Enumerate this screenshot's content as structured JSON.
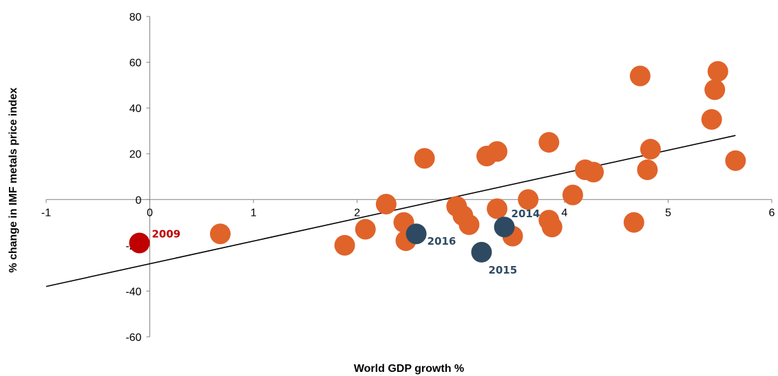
{
  "chart_data": {
    "type": "scatter",
    "title": "",
    "xlabel": "World GDP growth %",
    "ylabel": "% change in IMF metals price index",
    "xlim": [
      -1,
      6
    ],
    "ylim": [
      -60,
      80
    ],
    "xticks": [
      "-1",
      "0",
      "1",
      "2",
      "3",
      "4",
      "5",
      "6"
    ],
    "yticks": [
      "80",
      "60",
      "40",
      "20",
      "0",
      "-20",
      "-40",
      "-60"
    ],
    "grid": false,
    "legend": "none",
    "colors": {
      "default": "#e0632a",
      "highlight_2009": "#c00000",
      "recent": "#2e4a62",
      "label_2009": "#c00000",
      "label_recent": "#2e4a62",
      "trendline": "#000000"
    },
    "trendline": {
      "x": [
        -1,
        5.65
      ],
      "y": [
        -38,
        28
      ]
    },
    "points": [
      {
        "x": -0.1,
        "y": -19,
        "label": "2009",
        "group": "highlight_2009"
      },
      {
        "x": 2.57,
        "y": -15,
        "label": "2016",
        "group": "recent"
      },
      {
        "x": 3.2,
        "y": -23,
        "label": "2015",
        "group": "recent"
      },
      {
        "x": 3.42,
        "y": -12,
        "label": "2014",
        "group": "recent"
      },
      {
        "x": 0.68,
        "y": -15,
        "group": "default"
      },
      {
        "x": 1.88,
        "y": -20,
        "group": "default"
      },
      {
        "x": 2.08,
        "y": -13,
        "group": "default"
      },
      {
        "x": 2.28,
        "y": -2,
        "group": "default"
      },
      {
        "x": 2.45,
        "y": -10,
        "group": "default"
      },
      {
        "x": 2.47,
        "y": -18,
        "group": "default"
      },
      {
        "x": 2.65,
        "y": 18,
        "group": "default"
      },
      {
        "x": 2.96,
        "y": -3,
        "group": "default"
      },
      {
        "x": 3.02,
        "y": -7,
        "group": "default"
      },
      {
        "x": 3.08,
        "y": -11,
        "group": "default"
      },
      {
        "x": 3.25,
        "y": 19,
        "group": "default"
      },
      {
        "x": 3.35,
        "y": 21,
        "group": "default"
      },
      {
        "x": 3.35,
        "y": -4,
        "group": "default"
      },
      {
        "x": 3.5,
        "y": -16,
        "group": "default"
      },
      {
        "x": 3.65,
        "y": 0,
        "group": "default"
      },
      {
        "x": 3.85,
        "y": 25,
        "group": "default"
      },
      {
        "x": 3.85,
        "y": -9,
        "group": "default"
      },
      {
        "x": 3.88,
        "y": -12,
        "group": "default"
      },
      {
        "x": 4.08,
        "y": 2,
        "group": "default"
      },
      {
        "x": 4.2,
        "y": 13,
        "group": "default"
      },
      {
        "x": 4.28,
        "y": 12,
        "group": "default"
      },
      {
        "x": 4.67,
        "y": -10,
        "group": "default"
      },
      {
        "x": 4.73,
        "y": 54,
        "group": "default"
      },
      {
        "x": 4.8,
        "y": 13,
        "group": "default"
      },
      {
        "x": 4.83,
        "y": 22,
        "group": "default"
      },
      {
        "x": 5.42,
        "y": 35,
        "group": "default"
      },
      {
        "x": 5.45,
        "y": 48,
        "group": "default"
      },
      {
        "x": 5.48,
        "y": 56,
        "group": "default"
      },
      {
        "x": 5.65,
        "y": 17,
        "group": "default"
      }
    ]
  }
}
